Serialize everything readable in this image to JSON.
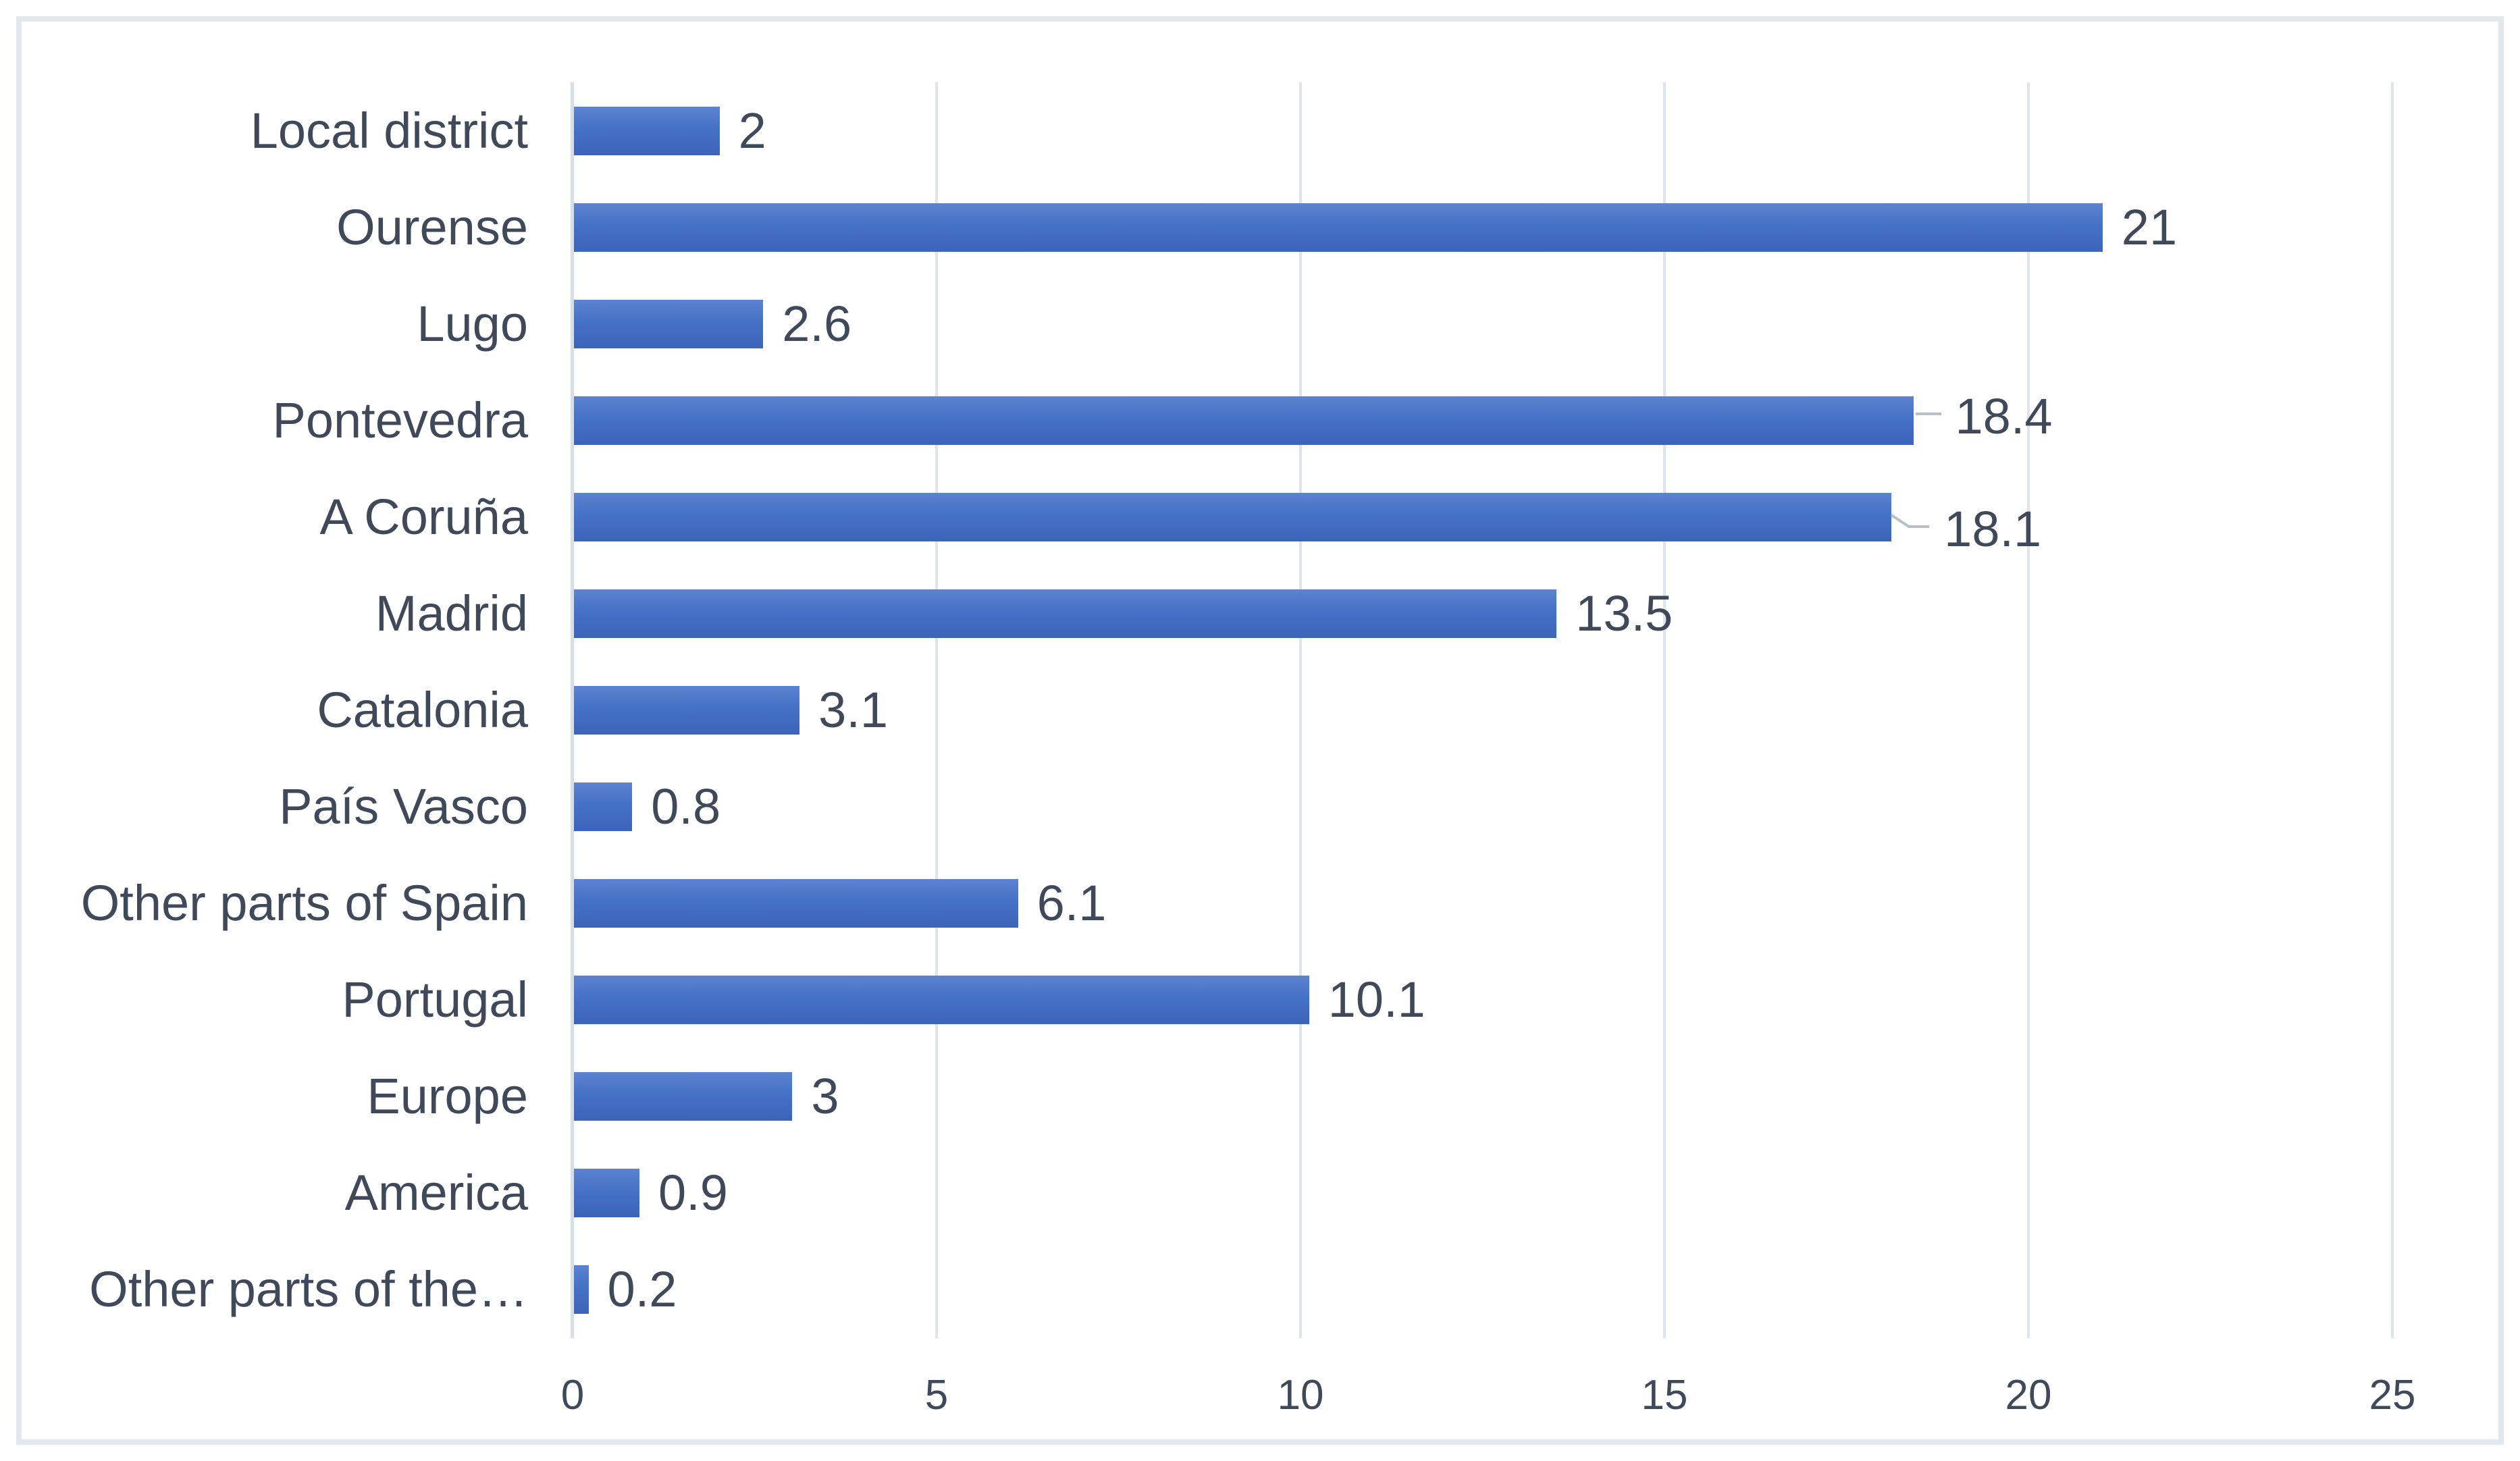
{
  "chart_data": {
    "type": "bar",
    "orientation": "horizontal",
    "title": "",
    "categories": [
      "Local district",
      "Ourense",
      "Lugo",
      "Pontevedra",
      "A Coruña",
      "Madrid",
      "Catalonia",
      "País Vasco",
      "Other parts of Spain",
      "Portugal",
      "Europe",
      "America",
      "Other parts of the…"
    ],
    "values": [
      2,
      21,
      2.6,
      18.4,
      18.1,
      13.5,
      3.1,
      0.8,
      6.1,
      10.1,
      3,
      0.9,
      0.2
    ],
    "labels": [
      "2",
      "21",
      "2.6",
      "18.4",
      "18.1",
      "13.5",
      "3.1",
      "0.8",
      "6.1",
      "10.1",
      "3",
      "0.9",
      "0.2"
    ],
    "x_ticks": [
      "0",
      "5",
      "10",
      "15",
      "20",
      "25"
    ],
    "xlim": [
      0,
      25
    ],
    "grid": true,
    "legend": "none",
    "leaders": [
      {
        "index": 3,
        "type": "straight"
      },
      {
        "index": 4,
        "type": "elbow"
      }
    ],
    "colors": {
      "bar": "#4472c4",
      "bar_gradient_top": "#5e82d2",
      "bar_gradient_bottom": "#3c64b8",
      "text": "#3f4959",
      "gridline": "#e0e4ea",
      "axis_line": "#d9dde4",
      "leader_line": "#b8bfc8",
      "frame_border": "#e3e7ee",
      "background": "#ffffff"
    }
  }
}
